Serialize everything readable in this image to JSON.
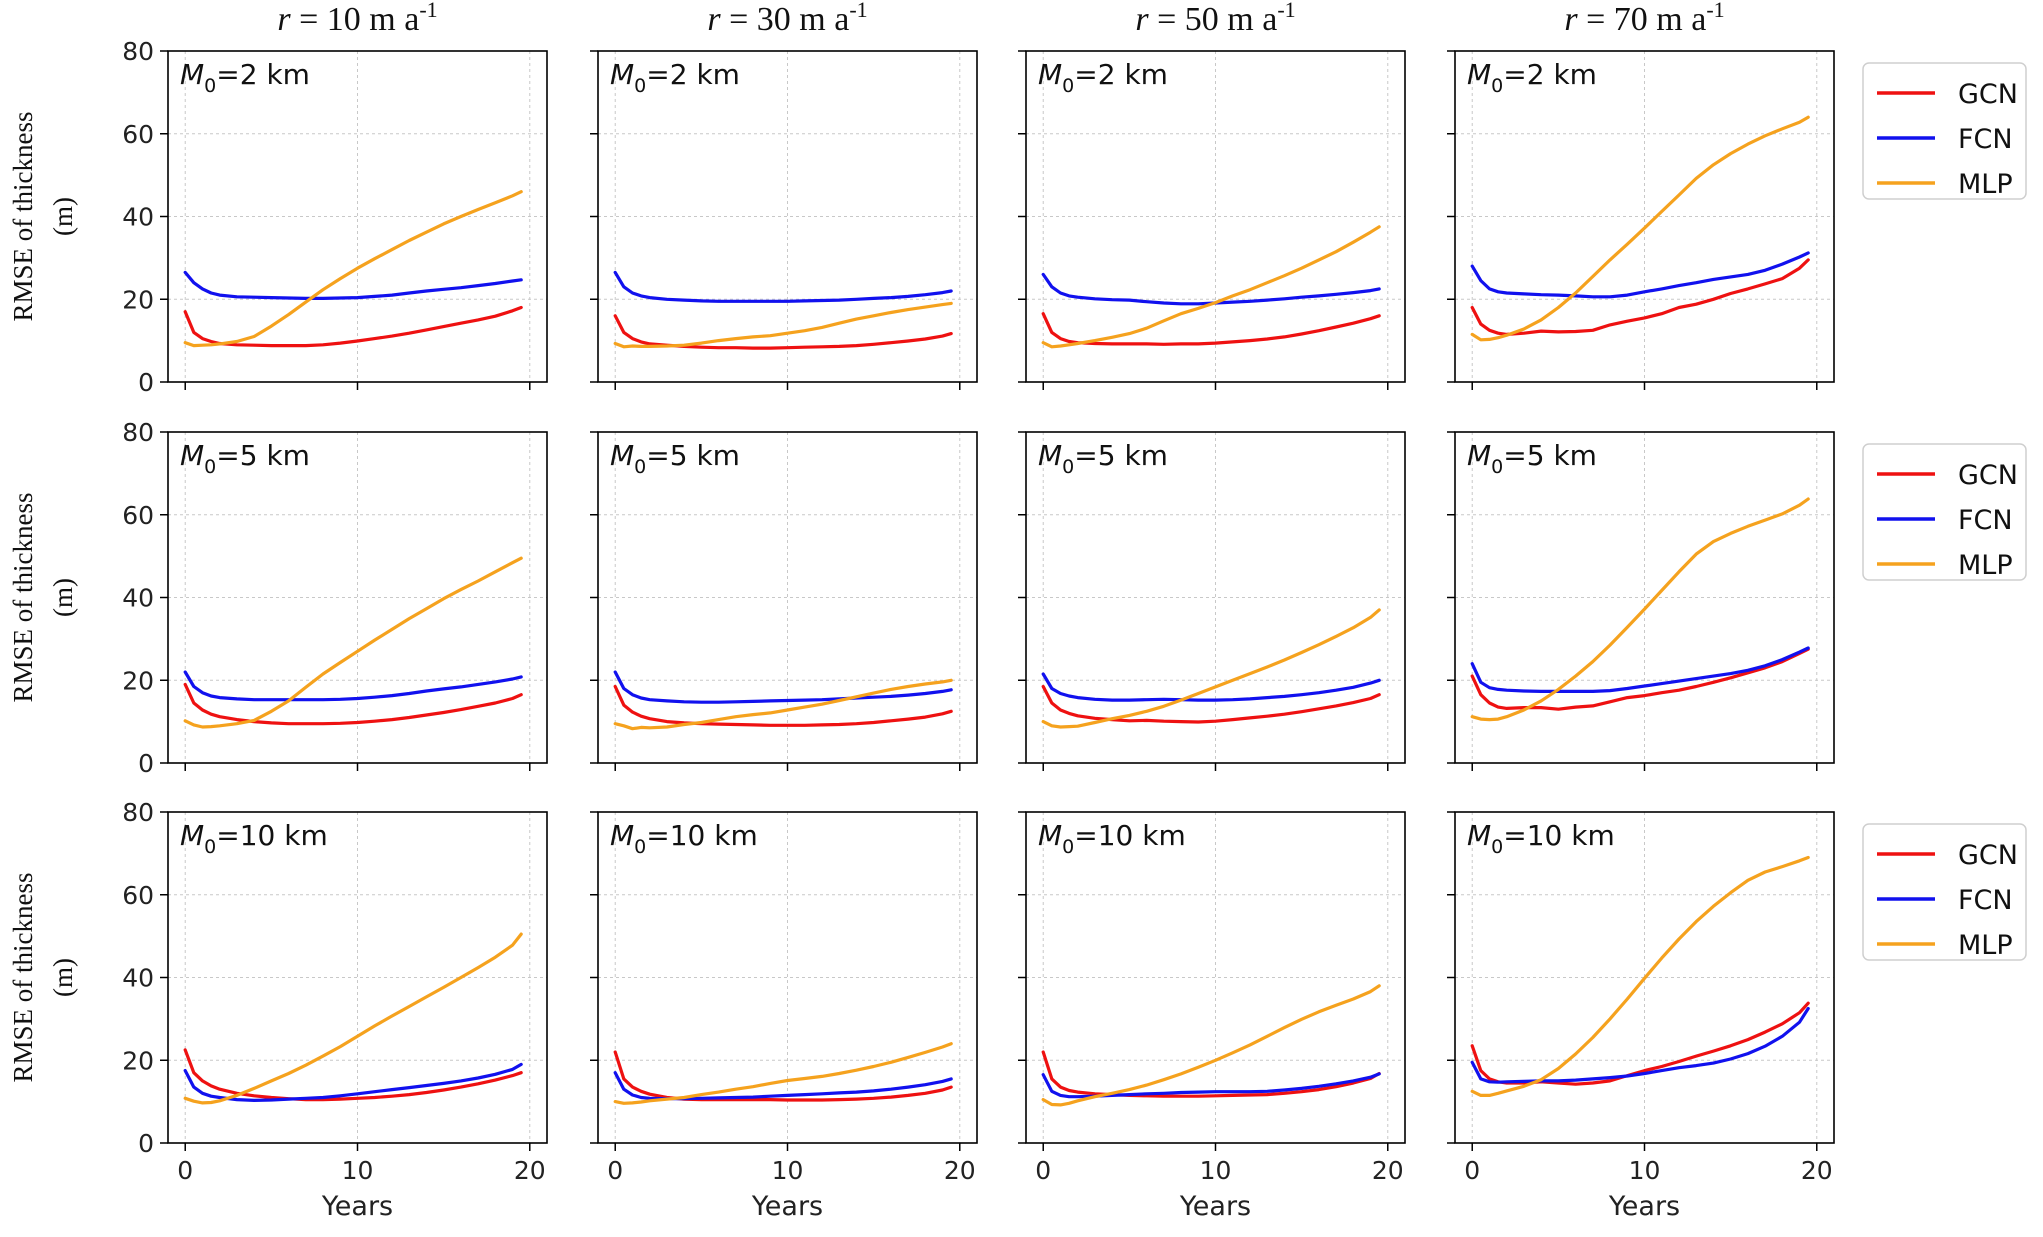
{
  "chart_data": {
    "type": "line",
    "layout": "grid-3x4",
    "column_titles": [
      "r = 10 m a-1",
      "r = 30 m a-1",
      "r = 50 m a-1",
      "r = 70 m a-1"
    ],
    "row_labels": [
      "M0=2 km",
      "M0=5 km",
      "M0=10 km"
    ],
    "panel_label_prefix": "M",
    "panel_label_sub": "0",
    "panel_label_values": [
      "=2 km",
      "=5 km",
      "=10 km"
    ],
    "column_title_parts": [
      {
        "r": "r",
        "eq": " = 10 m a",
        "sup": "-1"
      },
      {
        "r": "r",
        "eq": " = 30 m a",
        "sup": "-1"
      },
      {
        "r": "r",
        "eq": " = 50 m a",
        "sup": "-1"
      },
      {
        "r": "r",
        "eq": " = 70 m a",
        "sup": "-1"
      }
    ],
    "xlabel": "Years",
    "ylabel_line1": "RMSE of thickness",
    "ylabel_line2": "(m)",
    "xlim": [
      -1,
      21
    ],
    "ylim": [
      0,
      80
    ],
    "xticks": [
      0,
      10,
      20
    ],
    "yticks": [
      0,
      20,
      40,
      60,
      80
    ],
    "grid": true,
    "legend": {
      "placement": "outside-right",
      "entries": [
        "GCN",
        "FCN",
        "MLP"
      ]
    },
    "colors": {
      "GCN": "#ee1111",
      "FCN": "#1111ee",
      "MLP": "#f5a21e"
    },
    "x": [
      0,
      0.5,
      1,
      1.5,
      2,
      3,
      4,
      5,
      6,
      7,
      8,
      9,
      10,
      11,
      12,
      13,
      14,
      15,
      16,
      17,
      18,
      19,
      19.5
    ],
    "panels": [
      [
        {
          "GCN": [
            17,
            12,
            10.5,
            9.8,
            9.3,
            9.0,
            8.9,
            8.8,
            8.8,
            8.8,
            9.0,
            9.4,
            9.9,
            10.5,
            11.1,
            11.8,
            12.6,
            13.4,
            14.2,
            15.0,
            15.9,
            17.2,
            18.0
          ],
          "FCN": [
            26.5,
            24,
            22.5,
            21.5,
            21,
            20.6,
            20.5,
            20.4,
            20.3,
            20.2,
            20.2,
            20.3,
            20.4,
            20.7,
            21.0,
            21.5,
            22.0,
            22.4,
            22.8,
            23.3,
            23.8,
            24.4,
            24.7
          ],
          "MLP": [
            9.5,
            8.8,
            8.9,
            9.0,
            9.2,
            9.8,
            11.0,
            13.5,
            16.3,
            19.3,
            22.3,
            25.0,
            27.5,
            29.8,
            32.0,
            34.2,
            36.2,
            38.2,
            40.0,
            41.7,
            43.3,
            45.0,
            46.0
          ]
        },
        {
          "GCN": [
            16,
            12,
            10.5,
            9.7,
            9.2,
            8.9,
            8.6,
            8.4,
            8.3,
            8.3,
            8.2,
            8.2,
            8.3,
            8.4,
            8.5,
            8.6,
            8.8,
            9.1,
            9.5,
            9.9,
            10.4,
            11.1,
            11.7
          ],
          "FCN": [
            26.5,
            23,
            21.5,
            20.8,
            20.4,
            20.0,
            19.8,
            19.6,
            19.5,
            19.5,
            19.5,
            19.5,
            19.5,
            19.6,
            19.7,
            19.8,
            20.0,
            20.2,
            20.4,
            20.7,
            21.1,
            21.6,
            22.0
          ],
          "MLP": [
            9.3,
            8.5,
            8.7,
            8.6,
            8.6,
            8.7,
            8.9,
            9.4,
            10.0,
            10.5,
            10.9,
            11.2,
            11.8,
            12.4,
            13.2,
            14.2,
            15.2,
            16.0,
            16.8,
            17.5,
            18.1,
            18.7,
            19.0
          ]
        },
        {
          "GCN": [
            16.5,
            12,
            10.5,
            9.8,
            9.5,
            9.3,
            9.2,
            9.2,
            9.2,
            9.1,
            9.2,
            9.2,
            9.4,
            9.7,
            10.0,
            10.4,
            10.9,
            11.6,
            12.4,
            13.3,
            14.2,
            15.3,
            16.0
          ],
          "FCN": [
            26,
            23,
            21.5,
            20.8,
            20.5,
            20.1,
            19.9,
            19.8,
            19.4,
            19.1,
            18.9,
            18.9,
            19.1,
            19.3,
            19.5,
            19.8,
            20.1,
            20.5,
            20.8,
            21.2,
            21.6,
            22.1,
            22.5
          ],
          "MLP": [
            9.5,
            8.5,
            8.7,
            9.0,
            9.3,
            10.0,
            10.8,
            11.7,
            13.0,
            14.8,
            16.5,
            17.8,
            19.2,
            20.8,
            22.3,
            24.0,
            25.7,
            27.5,
            29.5,
            31.5,
            33.8,
            36.2,
            37.5
          ]
        },
        {
          "GCN": [
            18,
            14,
            12.5,
            11.8,
            11.5,
            11.8,
            12.3,
            12.1,
            12.2,
            12.5,
            13.8,
            14.7,
            15.5,
            16.5,
            18.0,
            18.8,
            20.0,
            21.4,
            22.5,
            23.7,
            25.0,
            27.5,
            29.5
          ],
          "FCN": [
            28,
            24.5,
            22.5,
            21.8,
            21.5,
            21.3,
            21.1,
            21.0,
            20.8,
            20.6,
            20.6,
            21.0,
            21.8,
            22.5,
            23.3,
            24.0,
            24.8,
            25.4,
            26.0,
            27.0,
            28.5,
            30.2,
            31.2
          ],
          "MLP": [
            11.5,
            10.2,
            10.3,
            10.7,
            11.3,
            12.8,
            15.0,
            18.0,
            21.5,
            25.5,
            29.5,
            33.3,
            37.2,
            41.2,
            45.2,
            49.2,
            52.5,
            55.2,
            57.5,
            59.5,
            61.2,
            62.8,
            64.0
          ]
        }
      ],
      [
        {
          "GCN": [
            19,
            14.5,
            12.8,
            11.8,
            11.2,
            10.5,
            10.0,
            9.7,
            9.5,
            9.5,
            9.5,
            9.6,
            9.8,
            10.1,
            10.5,
            11.0,
            11.6,
            12.2,
            12.9,
            13.7,
            14.5,
            15.6,
            16.5
          ],
          "FCN": [
            22,
            18.5,
            17,
            16.2,
            15.8,
            15.5,
            15.3,
            15.3,
            15.3,
            15.3,
            15.3,
            15.4,
            15.6,
            15.9,
            16.3,
            16.8,
            17.4,
            17.9,
            18.4,
            19.0,
            19.6,
            20.3,
            20.8
          ],
          "MLP": [
            10.2,
            9.2,
            8.7,
            8.8,
            9.0,
            9.5,
            10.3,
            12.5,
            15.0,
            18.3,
            21.5,
            24.3,
            27.0,
            29.7,
            32.3,
            34.9,
            37.3,
            39.7,
            41.9,
            44.0,
            46.2,
            48.4,
            49.5
          ]
        },
        {
          "GCN": [
            18.5,
            14,
            12.3,
            11.3,
            10.7,
            10.0,
            9.7,
            9.5,
            9.4,
            9.3,
            9.2,
            9.1,
            9.1,
            9.1,
            9.2,
            9.3,
            9.5,
            9.8,
            10.2,
            10.6,
            11.1,
            11.9,
            12.5
          ],
          "FCN": [
            22,
            18,
            16.5,
            15.7,
            15.3,
            15.0,
            14.8,
            14.7,
            14.7,
            14.8,
            14.9,
            15.0,
            15.1,
            15.2,
            15.3,
            15.5,
            15.7,
            15.9,
            16.1,
            16.4,
            16.8,
            17.3,
            17.7
          ],
          "MLP": [
            9.5,
            9.0,
            8.3,
            8.6,
            8.5,
            8.7,
            9.3,
            9.8,
            10.5,
            11.2,
            11.7,
            12.1,
            12.8,
            13.5,
            14.2,
            15.1,
            16.0,
            16.9,
            17.8,
            18.5,
            19.1,
            19.6,
            20.0
          ]
        },
        {
          "GCN": [
            18.5,
            14.5,
            12.8,
            12,
            11.4,
            10.8,
            10.5,
            10.2,
            10.3,
            10.1,
            10.0,
            9.9,
            10.1,
            10.5,
            10.9,
            11.3,
            11.8,
            12.4,
            13.1,
            13.8,
            14.6,
            15.6,
            16.5
          ],
          "FCN": [
            21.5,
            18,
            16.8,
            16.2,
            15.8,
            15.4,
            15.2,
            15.2,
            15.3,
            15.4,
            15.3,
            15.2,
            15.2,
            15.3,
            15.5,
            15.8,
            16.1,
            16.5,
            17.0,
            17.6,
            18.3,
            19.3,
            20.0
          ],
          "MLP": [
            10,
            9.0,
            8.7,
            8.8,
            8.9,
            9.8,
            10.7,
            11.5,
            12.5,
            13.7,
            15.2,
            16.8,
            18.4,
            20.0,
            21.6,
            23.2,
            24.9,
            26.7,
            28.6,
            30.6,
            32.7,
            35.2,
            37.0
          ]
        },
        {
          "GCN": [
            21,
            16.5,
            14.5,
            13.5,
            13.2,
            13.4,
            13.4,
            13.0,
            13.5,
            13.8,
            14.8,
            15.8,
            16.3,
            17.0,
            17.6,
            18.5,
            19.5,
            20.6,
            21.8,
            23.0,
            24.5,
            26.5,
            27.5
          ],
          "FCN": [
            24,
            19.5,
            18.2,
            17.8,
            17.6,
            17.4,
            17.3,
            17.3,
            17.3,
            17.3,
            17.5,
            18.0,
            18.6,
            19.2,
            19.8,
            20.4,
            21.0,
            21.6,
            22.4,
            23.5,
            25.0,
            26.8,
            27.8
          ],
          "MLP": [
            11.2,
            10.6,
            10.5,
            10.6,
            11.2,
            12.8,
            15.0,
            17.8,
            21.0,
            24.5,
            28.5,
            32.8,
            37.2,
            41.7,
            46.2,
            50.5,
            53.5,
            55.5,
            57.2,
            58.7,
            60.2,
            62.3,
            63.8
          ]
        }
      ],
      [
        {
          "GCN": [
            22.5,
            17,
            15,
            13.8,
            13,
            12,
            11.4,
            11.0,
            10.7,
            10.5,
            10.5,
            10.6,
            10.8,
            11.0,
            11.3,
            11.7,
            12.2,
            12.8,
            13.5,
            14.3,
            15.2,
            16.3,
            17.0
          ],
          "FCN": [
            17.5,
            13.5,
            12,
            11.3,
            11,
            10.5,
            10.3,
            10.4,
            10.6,
            10.8,
            11.0,
            11.4,
            11.9,
            12.4,
            12.9,
            13.4,
            13.9,
            14.4,
            15.0,
            15.7,
            16.6,
            17.8,
            19.0
          ],
          "MLP": [
            10.8,
            10.1,
            9.7,
            9.8,
            10.2,
            11.5,
            13.2,
            15.0,
            16.8,
            18.8,
            21.0,
            23.3,
            25.8,
            28.3,
            30.7,
            33.0,
            35.3,
            37.6,
            40.0,
            42.4,
            44.9,
            47.8,
            50.5
          ]
        },
        {
          "GCN": [
            22,
            15.5,
            13.5,
            12.5,
            11.8,
            11,
            10.6,
            10.5,
            10.5,
            10.5,
            10.5,
            10.5,
            10.4,
            10.4,
            10.4,
            10.5,
            10.6,
            10.8,
            11.1,
            11.5,
            12.0,
            12.8,
            13.5
          ],
          "FCN": [
            17,
            13,
            11.6,
            11.0,
            10.8,
            10.7,
            10.7,
            10.8,
            10.9,
            11.0,
            11.1,
            11.3,
            11.5,
            11.7,
            11.9,
            12.1,
            12.3,
            12.6,
            13.0,
            13.5,
            14.1,
            14.9,
            15.5
          ],
          "MLP": [
            10,
            9.6,
            9.7,
            9.9,
            10.2,
            10.6,
            11.0,
            11.7,
            12.3,
            13.0,
            13.6,
            14.4,
            15.1,
            15.6,
            16.1,
            16.8,
            17.6,
            18.5,
            19.5,
            20.7,
            21.9,
            23.2,
            24.0
          ]
        },
        {
          "GCN": [
            22,
            15.5,
            13.5,
            12.7,
            12.3,
            11.9,
            11.7,
            11.5,
            11.4,
            11.3,
            11.3,
            11.3,
            11.4,
            11.5,
            11.6,
            11.7,
            12.0,
            12.4,
            12.9,
            13.6,
            14.5,
            15.6,
            16.8
          ],
          "FCN": [
            16.5,
            12.5,
            11.5,
            11.2,
            11.2,
            11.3,
            11.5,
            11.7,
            11.9,
            12.0,
            12.2,
            12.3,
            12.4,
            12.4,
            12.4,
            12.5,
            12.8,
            13.2,
            13.7,
            14.3,
            15.0,
            15.9,
            16.7
          ],
          "MLP": [
            10.5,
            9.3,
            9.2,
            9.6,
            10.2,
            11.2,
            12.0,
            12.9,
            14.0,
            15.3,
            16.7,
            18.3,
            20.0,
            21.8,
            23.7,
            25.8,
            27.9,
            29.9,
            31.7,
            33.3,
            34.8,
            36.6,
            38.0
          ]
        },
        {
          "GCN": [
            23.5,
            17.5,
            15.5,
            14.8,
            14.5,
            14.5,
            14.8,
            14.5,
            14.2,
            14.5,
            15.0,
            16.3,
            17.5,
            18.5,
            19.7,
            21.0,
            22.2,
            23.5,
            25.0,
            26.8,
            28.8,
            31.5,
            33.8
          ],
          "FCN": [
            19.5,
            15.5,
            14.8,
            14.7,
            14.8,
            14.9,
            15.0,
            15.0,
            15.2,
            15.5,
            15.8,
            16.2,
            16.8,
            17.5,
            18.2,
            18.7,
            19.3,
            20.3,
            21.6,
            23.4,
            25.8,
            29.2,
            32.5
          ],
          "MLP": [
            12.5,
            11.5,
            11.5,
            12.0,
            12.6,
            13.7,
            15.3,
            18.0,
            21.5,
            25.5,
            30.0,
            34.8,
            39.8,
            44.7,
            49.3,
            53.5,
            57.2,
            60.5,
            63.5,
            65.5,
            66.8,
            68.2,
            69.0
          ]
        }
      ]
    ]
  }
}
